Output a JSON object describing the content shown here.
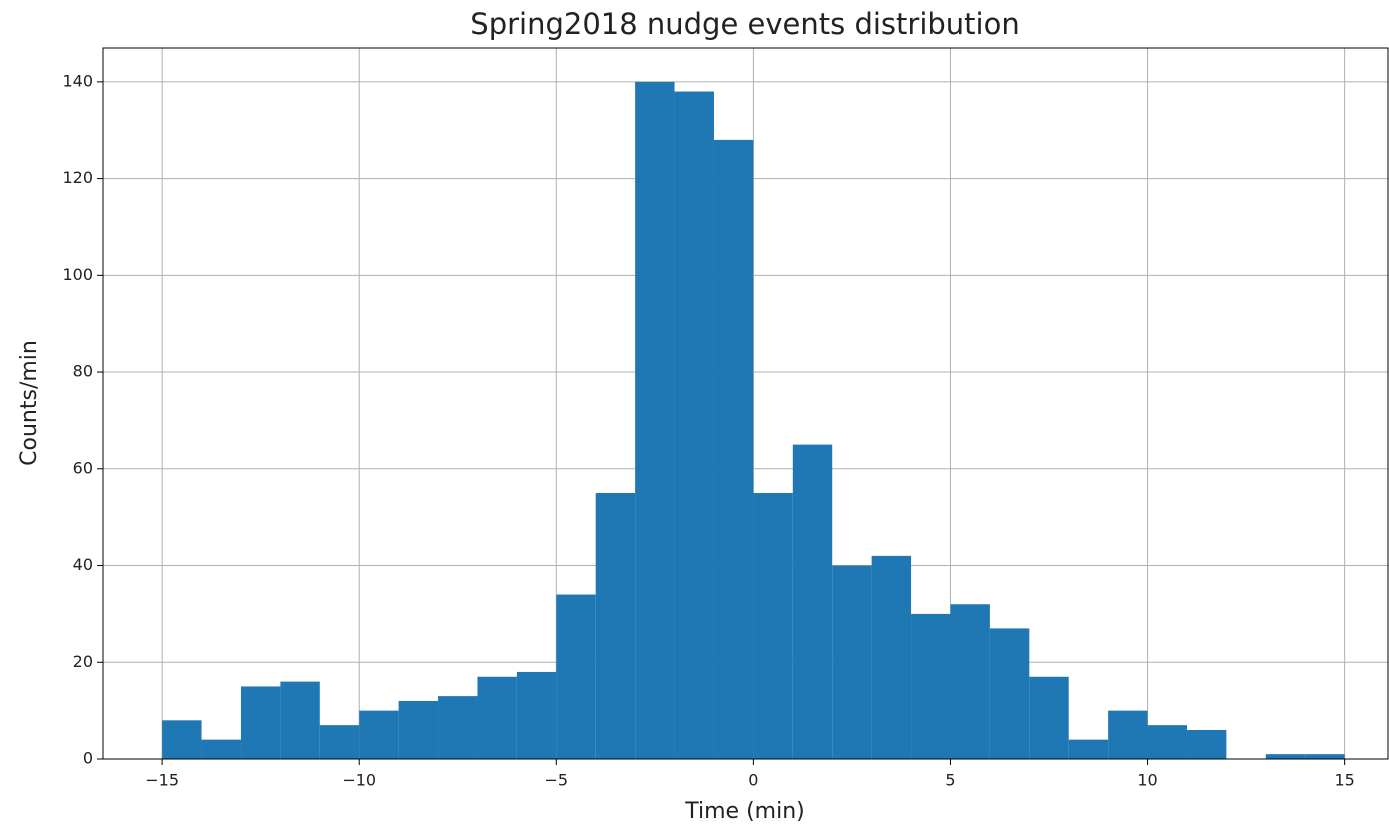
{
  "chart_data": {
    "type": "histogram",
    "title": "Spring2018 nudge events distribution",
    "xlabel": "Time (min)",
    "ylabel": "Counts/min",
    "bins": [
      -15,
      -14,
      -13,
      -12,
      -11,
      -10,
      -9,
      -8,
      -7,
      -6,
      -5,
      -4,
      -3,
      -2,
      -1,
      0,
      1,
      2,
      3,
      4,
      5,
      6,
      7,
      8,
      9,
      10,
      11,
      12,
      13,
      14,
      15
    ],
    "values": [
      8,
      4,
      15,
      16,
      7,
      10,
      12,
      13,
      17,
      18,
      34,
      55,
      140,
      138,
      128,
      55,
      65,
      40,
      42,
      30,
      32,
      27,
      17,
      4,
      10,
      7,
      6,
      0,
      1,
      1
    ],
    "color": "#1f77b4",
    "xlim": [
      -16.5,
      16.1
    ],
    "ylim": [
      0,
      147
    ],
    "xticks": [
      {
        "value": -15,
        "label": "−15"
      },
      {
        "value": -10,
        "label": "−10"
      },
      {
        "value": -5,
        "label": "−5"
      },
      0,
      5,
      10,
      15
    ],
    "yticks": [
      0,
      20,
      40,
      60,
      80,
      100,
      120,
      140
    ],
    "grid": true
  }
}
